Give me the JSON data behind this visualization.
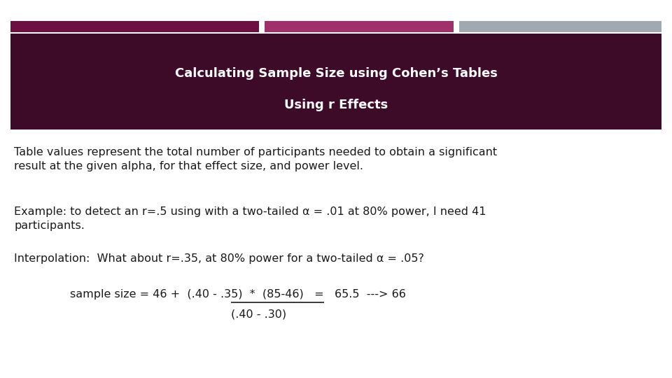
{
  "title_line1": "Calculating Sample Size using Cohen’s Tables",
  "title_line2": "Using r Effects",
  "title_bg_color": "#3D0A28",
  "title_text_color": "#FFFFFF",
  "bar1_color": "#6B1040",
  "bar2_color": "#A0306A",
  "bar3_color": "#A0A8B0",
  "body_text_color": "#1A1A1A",
  "bg_color": "#FFFFFF",
  "para1": "Table values represent the total number of participants needed to obtain a significant\nresult at the given alpha, for that effect size, and power level.",
  "para2": "Example: to detect an r=.5 using with a two-tailed α = .01 at 80% power, I need 41\nparticipants.",
  "para3": "Interpolation:  What about r=.35, at 80% power for a two-tailed α = .05?",
  "formula_full": "sample size = 46 +  (.40 - .35)  *  (85-46)   =   65.5  ---> 66",
  "formula_denom": "(.40 - .30)",
  "font_size_title": 13,
  "font_size_body": 11.5,
  "font_size_formula": 11.5
}
